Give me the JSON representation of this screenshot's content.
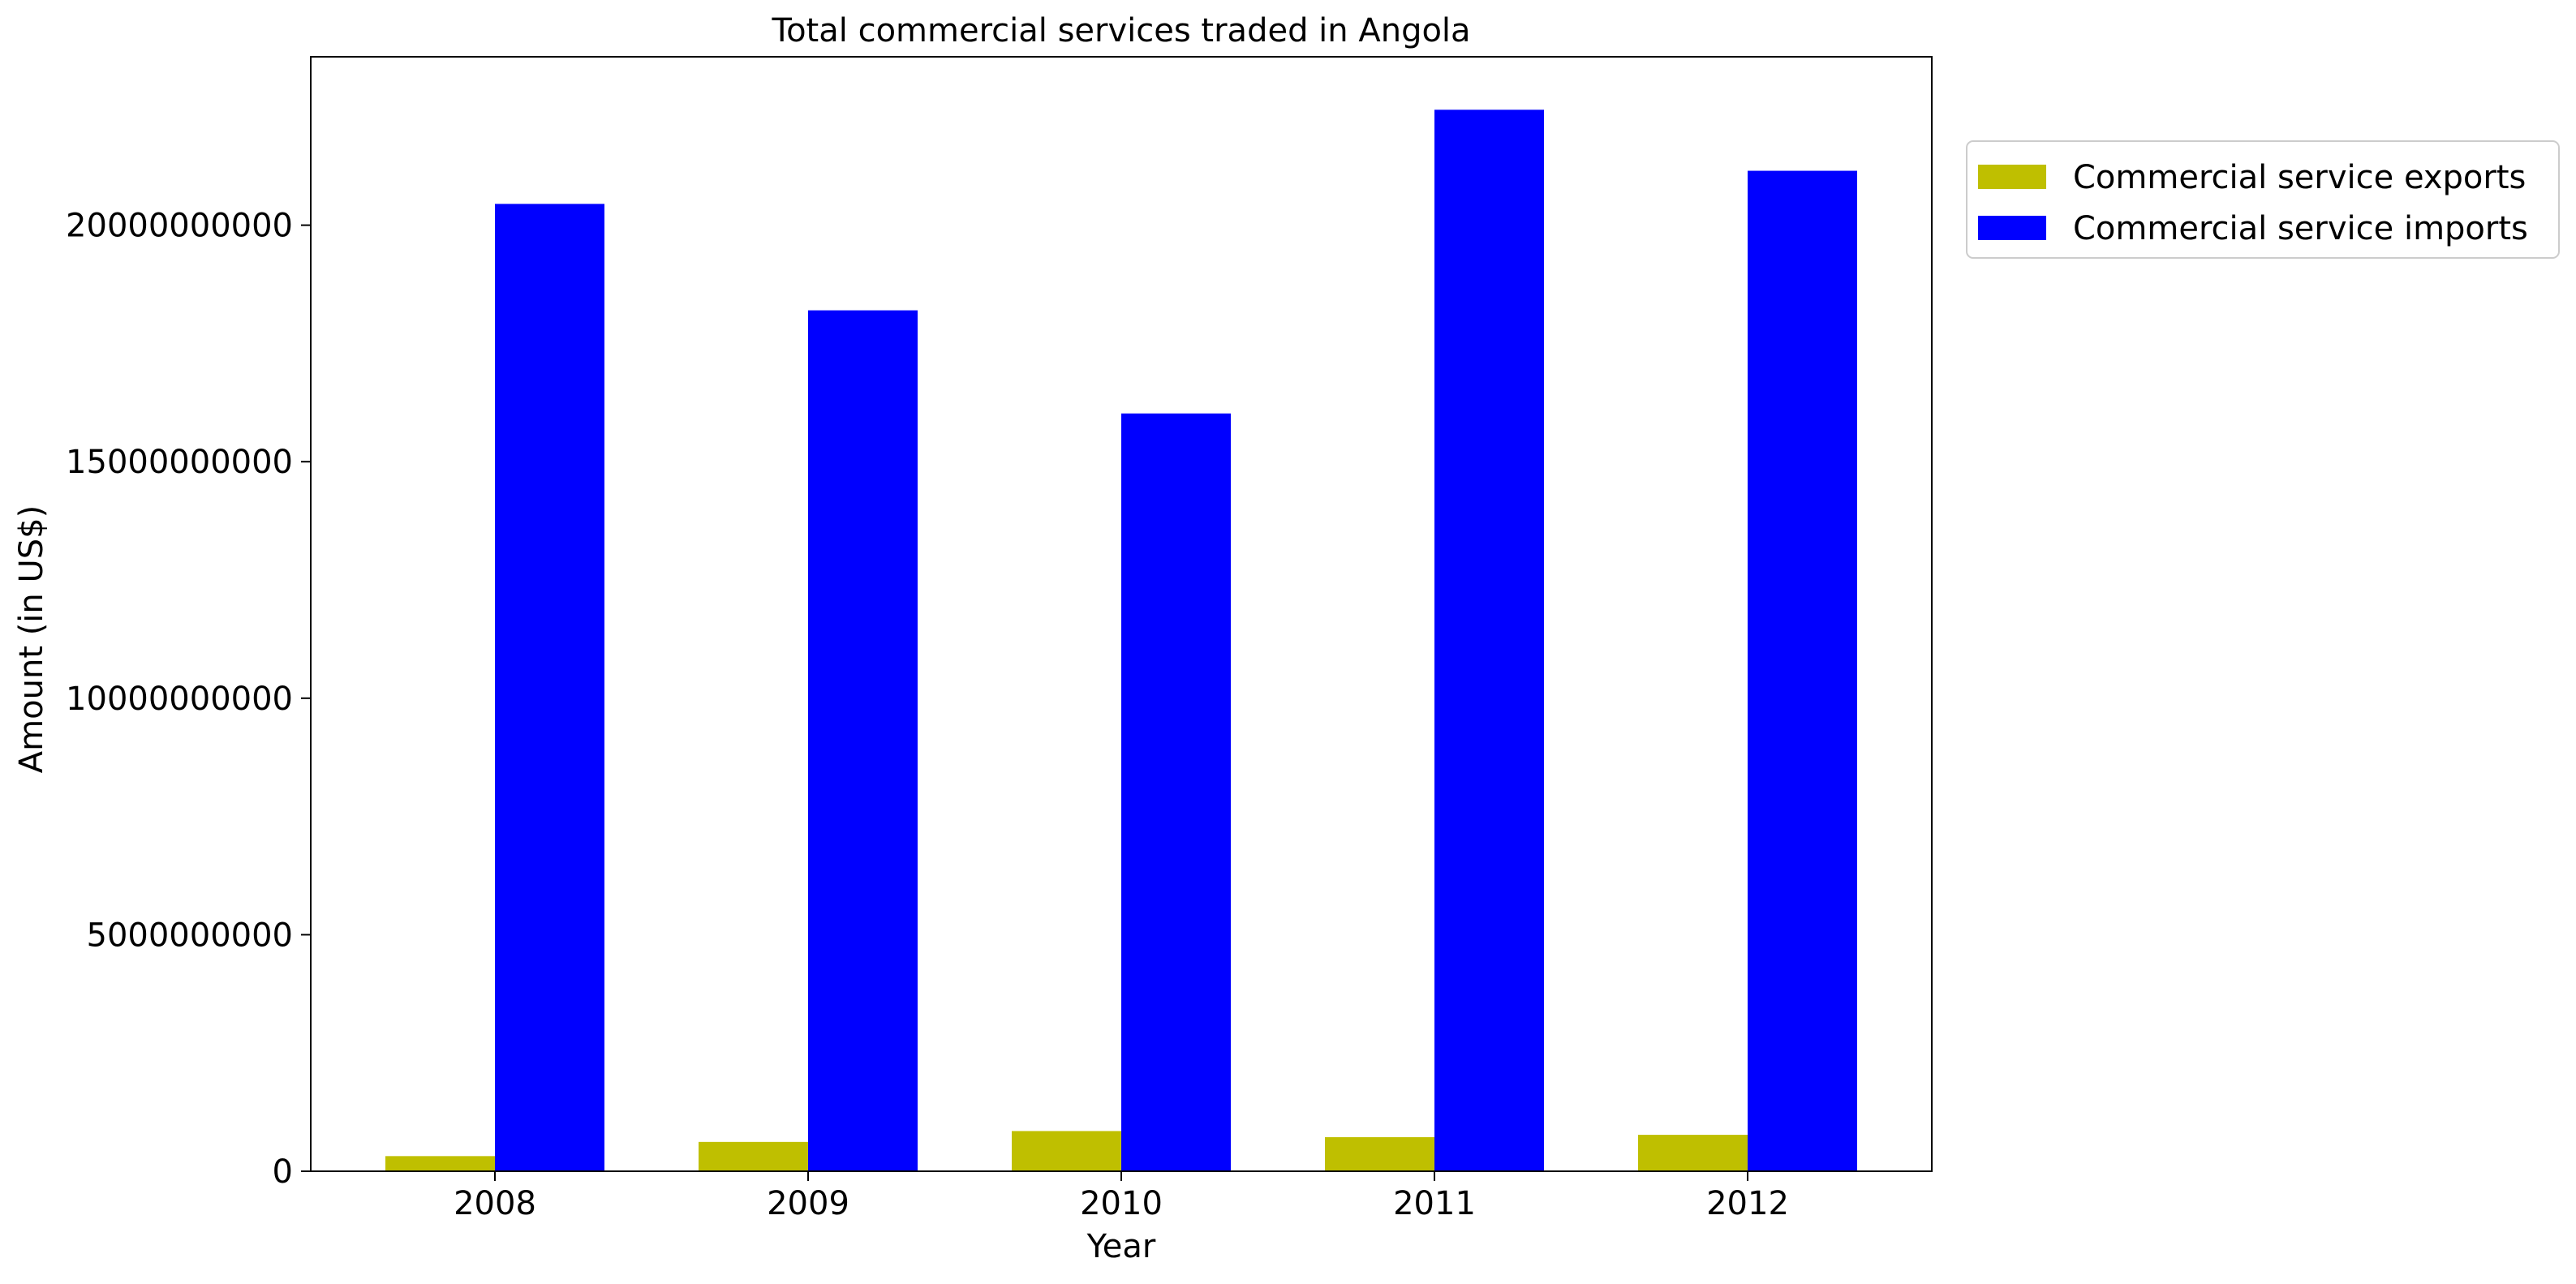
{
  "chart_data": {
    "type": "bar",
    "title": "Total commercial services traded in Angola",
    "xlabel": "Year",
    "ylabel": "Amount (in US$)",
    "categories": [
      "2008",
      "2009",
      "2010",
      "2011",
      "2012"
    ],
    "series": [
      {
        "name": "Commercial service exports",
        "color": "#bfbf00",
        "values": [
          320000000,
          620000000,
          850000000,
          720000000,
          770000000
        ]
      },
      {
        "name": "Commercial service imports",
        "color": "#0000ff",
        "values": [
          20450000000,
          18200000000,
          16020000000,
          22440000000,
          21150000000
        ]
      }
    ],
    "ylim": [
      0,
      23560000000
    ],
    "yticks": [
      0,
      5000000000,
      10000000000,
      15000000000,
      20000000000
    ],
    "ytick_labels": [
      "0",
      "5000000000",
      "10000000000",
      "15000000000",
      "20000000000"
    ],
    "grid": false,
    "legend_position": "outside-top-right"
  }
}
